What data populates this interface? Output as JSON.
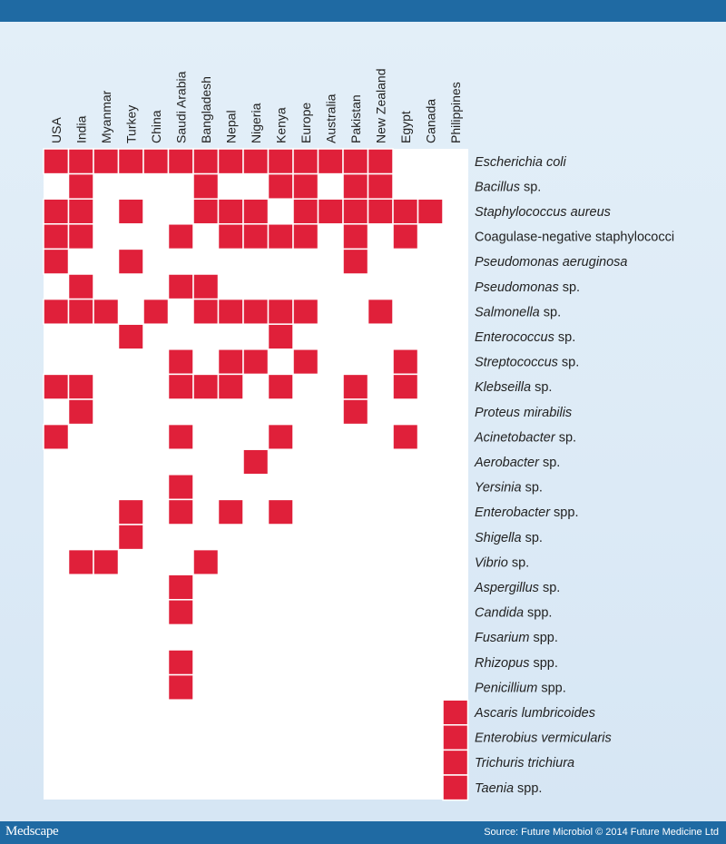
{
  "footer": {
    "logo": "Medscape",
    "source": "Source: Future Microbiol © 2014 Future Medicine Ltd"
  },
  "colors": {
    "cell": "#e0203a",
    "bars": "#1f6aa3"
  },
  "chart_data": {
    "type": "heatmap",
    "columns": [
      "USA",
      "India",
      "Myanmar",
      "Turkey",
      "China",
      "Saudi Arabia",
      "Bangladesh",
      "Nepal",
      "Nigeria",
      "Kenya",
      "Europe",
      "Australia",
      "Pakistan",
      "New Zealand",
      "Egypt",
      "Canada",
      "Philippines"
    ],
    "rows": [
      {
        "parts": [
          {
            "t": "Escherichia coli",
            "i": true
          }
        ],
        "present": [
          0,
          1,
          2,
          3,
          4,
          5,
          6,
          7,
          8,
          9,
          10,
          11,
          12,
          13
        ]
      },
      {
        "parts": [
          {
            "t": "Bacillus",
            "i": true
          },
          {
            "t": " sp.",
            "i": false
          }
        ],
        "present": [
          1,
          6,
          9,
          10,
          12,
          13
        ]
      },
      {
        "parts": [
          {
            "t": "Staphylococcus aureus",
            "i": true
          }
        ],
        "present": [
          0,
          1,
          3,
          6,
          7,
          8,
          10,
          11,
          12,
          13,
          14,
          15
        ]
      },
      {
        "parts": [
          {
            "t": "Coagulase-negative staphylococci",
            "i": false
          }
        ],
        "present": [
          0,
          1,
          5,
          7,
          8,
          9,
          10,
          12,
          14
        ]
      },
      {
        "parts": [
          {
            "t": "Pseudomonas aeruginosa",
            "i": true
          }
        ],
        "present": [
          0,
          3,
          12
        ]
      },
      {
        "parts": [
          {
            "t": "Pseudomonas",
            "i": true
          },
          {
            "t": " sp.",
            "i": false
          }
        ],
        "present": [
          1,
          5,
          6
        ]
      },
      {
        "parts": [
          {
            "t": "Salmonella",
            "i": true
          },
          {
            "t": " sp.",
            "i": false
          }
        ],
        "present": [
          0,
          1,
          2,
          4,
          6,
          7,
          8,
          9,
          10,
          13
        ]
      },
      {
        "parts": [
          {
            "t": "Enterococcus",
            "i": true
          },
          {
            "t": " sp.",
            "i": false
          }
        ],
        "present": [
          3,
          9
        ]
      },
      {
        "parts": [
          {
            "t": "Streptococcus",
            "i": true
          },
          {
            "t": " sp.",
            "i": false
          }
        ],
        "present": [
          5,
          7,
          8,
          10,
          14
        ]
      },
      {
        "parts": [
          {
            "t": "Klebseilla",
            "i": true
          },
          {
            "t": " sp.",
            "i": false
          }
        ],
        "present": [
          0,
          1,
          5,
          6,
          7,
          9,
          12,
          14
        ]
      },
      {
        "parts": [
          {
            "t": "Proteus mirabilis",
            "i": true
          }
        ],
        "present": [
          1,
          12
        ]
      },
      {
        "parts": [
          {
            "t": "Acinetobacter",
            "i": true
          },
          {
            "t": " sp.",
            "i": false
          }
        ],
        "present": [
          0,
          5,
          9,
          14
        ]
      },
      {
        "parts": [
          {
            "t": "Aerobacter",
            "i": true
          },
          {
            "t": " sp.",
            "i": false
          }
        ],
        "present": [
          8
        ]
      },
      {
        "parts": [
          {
            "t": "Yersinia",
            "i": true
          },
          {
            "t": " sp.",
            "i": false
          }
        ],
        "present": [
          5
        ]
      },
      {
        "parts": [
          {
            "t": "Enterobacter",
            "i": true
          },
          {
            "t": " spp.",
            "i": false
          }
        ],
        "present": [
          3,
          5,
          7,
          9
        ]
      },
      {
        "parts": [
          {
            "t": "Shigella",
            "i": true
          },
          {
            "t": " sp.",
            "i": false
          }
        ],
        "present": [
          3
        ]
      },
      {
        "parts": [
          {
            "t": "Vibrio",
            "i": true
          },
          {
            "t": " sp.",
            "i": false
          }
        ],
        "present": [
          1,
          2,
          6
        ]
      },
      {
        "parts": [
          {
            "t": "Aspergillus",
            "i": true
          },
          {
            "t": " sp.",
            "i": false
          }
        ],
        "present": [
          5
        ]
      },
      {
        "parts": [
          {
            "t": "Candida",
            "i": true
          },
          {
            "t": " spp.",
            "i": false
          }
        ],
        "present": [
          5
        ]
      },
      {
        "parts": [
          {
            "t": "Fusarium",
            "i": true
          },
          {
            "t": " spp.",
            "i": false
          }
        ],
        "present": []
      },
      {
        "parts": [
          {
            "t": "Rhizopus",
            "i": true
          },
          {
            "t": " spp.",
            "i": false
          }
        ],
        "present": [
          5
        ]
      },
      {
        "parts": [
          {
            "t": "Penicillium",
            "i": true
          },
          {
            "t": " spp.",
            "i": false
          }
        ],
        "present": [
          5
        ]
      },
      {
        "parts": [
          {
            "t": "Ascaris lumbricoides",
            "i": true
          }
        ],
        "present": [
          16
        ]
      },
      {
        "parts": [
          {
            "t": "Enterobius vermicularis",
            "i": true
          }
        ],
        "present": [
          16
        ]
      },
      {
        "parts": [
          {
            "t": "Trichuris trichiura",
            "i": true
          }
        ],
        "present": [
          16
        ]
      },
      {
        "parts": [
          {
            "t": "Taenia",
            "i": true
          },
          {
            "t": " spp.",
            "i": false
          }
        ],
        "present": [
          16
        ]
      }
    ]
  }
}
